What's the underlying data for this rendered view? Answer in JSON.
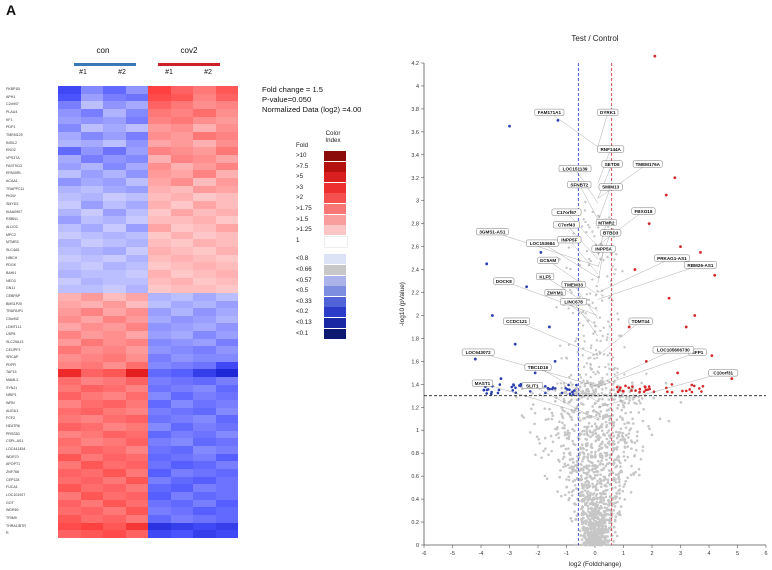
{
  "panel_label": "A",
  "heatmap": {
    "groups": [
      {
        "name": "con",
        "color": "#3a78b5",
        "replicates": [
          "#1",
          "#2"
        ]
      },
      {
        "name": "cov2",
        "color": "#cc2127",
        "replicates": [
          "#1",
          "#2"
        ]
      }
    ],
    "genes": [
      "FKBP1B",
      "APH1",
      "C2orf47",
      "PLAU4",
      "KF1",
      "PDP1",
      "TMEM129",
      "INSIL2",
      "ENO2",
      "VPS37A",
      "FASTKD3",
      "EPA00RL",
      "ACAA1",
      "TRAPPC11",
      "PIGW",
      "SMYD3",
      "KIAA0907",
      "RSBN1",
      "ALDOC",
      "MPC2",
      "MTMR3",
      "SLC4A5",
      "HIBCH",
      "PDGK",
      "BAHI1",
      "NEO3",
      "GN11",
      "CEBPAP",
      "BMS1P20",
      "TRAFAIP1",
      "C5orf42",
      "LDMT1L1",
      "USP8",
      "SLC25A13",
      "CEIJPF3",
      "SRCAP",
      "PDPR",
      "TAF15",
      "MAML3",
      "SYNJ1",
      "NRIP1",
      "WRN",
      "AUGU1",
      "FCF2",
      "HEATR6",
      "PRSS53",
      "CSPL-AS1",
      "LOC441454",
      "WDR70",
      "APOPT1",
      "ZNF766",
      "CEP128",
      "FUCA1",
      "LOC101927",
      "GOT",
      "WDR60",
      "TRIM9",
      "THRA1/BTR",
      "R"
    ],
    "cells": [
      [
        -0.85,
        -0.55,
        -0.7,
        -0.5,
        0.85,
        0.7,
        0.6,
        0.75
      ],
      [
        -0.8,
        -0.45,
        -0.6,
        -0.65,
        0.8,
        0.75,
        0.55,
        0.7
      ],
      [
        -0.6,
        -0.3,
        -0.5,
        -0.4,
        0.7,
        0.6,
        0.5,
        0.55
      ],
      [
        -0.5,
        -0.6,
        -0.35,
        -0.55,
        0.6,
        0.55,
        0.65,
        0.5
      ],
      [
        -0.45,
        -0.5,
        -0.45,
        -0.6,
        0.55,
        0.6,
        0.5,
        0.45
      ],
      [
        -0.55,
        -0.3,
        -0.4,
        -0.3,
        0.45,
        0.5,
        0.35,
        0.5
      ],
      [
        -0.4,
        -0.55,
        -0.45,
        -0.6,
        0.5,
        0.45,
        0.6,
        0.55
      ],
      [
        -0.35,
        -0.4,
        -0.3,
        -0.5,
        0.4,
        0.45,
        0.35,
        0.5
      ],
      [
        -0.7,
        -0.5,
        -0.65,
        -0.45,
        0.55,
        0.5,
        0.45,
        0.6
      ],
      [
        -0.4,
        -0.6,
        -0.5,
        -0.55,
        0.35,
        0.55,
        0.5,
        0.4
      ],
      [
        -0.45,
        -0.35,
        -0.55,
        -0.4,
        0.5,
        0.35,
        0.45,
        0.55
      ],
      [
        -0.3,
        -0.45,
        -0.35,
        -0.5,
        0.45,
        0.4,
        0.55,
        0.35
      ],
      [
        -0.5,
        -0.4,
        -0.45,
        -0.3,
        0.4,
        0.5,
        0.3,
        0.45
      ],
      [
        -0.35,
        -0.3,
        -0.4,
        -0.45,
        0.35,
        0.3,
        0.45,
        0.4
      ],
      [
        -0.3,
        -0.35,
        -0.25,
        -0.3,
        0.3,
        0.35,
        0.25,
        0.3
      ],
      [
        -0.25,
        -0.45,
        -0.3,
        -0.4,
        0.35,
        0.25,
        0.4,
        0.3
      ],
      [
        -0.35,
        -0.25,
        -0.45,
        -0.3,
        0.25,
        0.4,
        0.3,
        0.35
      ],
      [
        -0.45,
        -0.3,
        -0.35,
        -0.25,
        0.3,
        0.3,
        0.35,
        0.25
      ],
      [
        -0.3,
        -0.4,
        -0.25,
        -0.45,
        0.4,
        0.25,
        0.3,
        0.4
      ],
      [
        -0.25,
        -0.3,
        -0.35,
        -0.3,
        0.25,
        0.35,
        0.25,
        0.3
      ],
      [
        -0.35,
        -0.25,
        -0.3,
        -0.35,
        0.3,
        0.25,
        0.35,
        0.3
      ],
      [
        -0.3,
        -0.35,
        -0.4,
        -0.25,
        0.35,
        0.3,
        0.25,
        0.35
      ],
      [
        -0.25,
        -0.3,
        -0.25,
        -0.35,
        0.3,
        0.35,
        0.3,
        0.25
      ],
      [
        -0.3,
        -0.25,
        -0.35,
        -0.3,
        0.25,
        0.3,
        0.35,
        0.3
      ],
      [
        -0.35,
        -0.3,
        -0.3,
        -0.25,
        0.35,
        0.25,
        0.3,
        0.35
      ],
      [
        -0.25,
        -0.35,
        -0.3,
        -0.3,
        0.3,
        0.35,
        0.25,
        0.3
      ],
      [
        -0.3,
        -0.3,
        -0.25,
        -0.35,
        0.25,
        0.3,
        0.3,
        0.25
      ],
      [
        0.35,
        0.45,
        0.3,
        0.4,
        -0.35,
        -0.3,
        -0.4,
        -0.3
      ],
      [
        0.4,
        0.35,
        0.45,
        0.3,
        -0.3,
        -0.4,
        -0.35,
        -0.45
      ],
      [
        0.45,
        0.55,
        0.4,
        0.5,
        -0.45,
        -0.35,
        -0.5,
        -0.4
      ],
      [
        0.5,
        0.4,
        0.55,
        0.45,
        -0.4,
        -0.5,
        -0.45,
        -0.35
      ],
      [
        0.4,
        0.5,
        0.45,
        0.55,
        -0.5,
        -0.45,
        -0.4,
        -0.5
      ],
      [
        0.55,
        0.45,
        0.5,
        0.4,
        -0.45,
        -0.4,
        -0.55,
        -0.45
      ],
      [
        0.45,
        0.6,
        0.5,
        0.55,
        -0.55,
        -0.5,
        -0.45,
        -0.6
      ],
      [
        0.6,
        0.5,
        0.55,
        0.45,
        -0.5,
        -0.55,
        -0.6,
        -0.5
      ],
      [
        0.5,
        0.55,
        0.6,
        0.5,
        -0.6,
        -0.5,
        -0.55,
        -0.55
      ],
      [
        0.55,
        0.6,
        0.5,
        0.65,
        -0.55,
        -0.6,
        -0.65,
        -0.85
      ],
      [
        0.95,
        0.7,
        0.75,
        1.0,
        -0.7,
        -0.75,
        -0.9,
        -1.0
      ],
      [
        0.65,
        0.55,
        0.6,
        0.7,
        -0.6,
        -0.65,
        -0.7,
        -0.6
      ],
      [
        0.6,
        0.7,
        0.65,
        0.55,
        -0.65,
        -0.6,
        -0.55,
        -0.7
      ],
      [
        0.7,
        0.6,
        0.55,
        0.65,
        -0.55,
        -0.7,
        -0.6,
        -0.65
      ],
      [
        0.55,
        0.65,
        0.7,
        0.6,
        -0.7,
        -0.55,
        -0.65,
        -0.6
      ],
      [
        0.65,
        0.7,
        0.6,
        0.55,
        -0.6,
        -0.65,
        -0.7,
        -0.55
      ],
      [
        0.6,
        0.55,
        0.65,
        0.7,
        -0.65,
        -0.6,
        -0.55,
        -0.7
      ],
      [
        0.7,
        0.65,
        0.55,
        0.6,
        -0.55,
        -0.7,
        -0.6,
        -0.65
      ],
      [
        0.55,
        0.6,
        0.7,
        0.65,
        -0.7,
        -0.6,
        -0.65,
        -0.55
      ],
      [
        0.65,
        0.55,
        0.6,
        0.7,
        -0.6,
        -0.55,
        -0.7,
        -0.65
      ],
      [
        0.6,
        0.7,
        0.65,
        0.55,
        -0.65,
        -0.7,
        -0.55,
        -0.6
      ],
      [
        0.75,
        0.6,
        0.7,
        0.65,
        -0.7,
        -0.65,
        -0.6,
        -0.75
      ],
      [
        0.6,
        0.75,
        0.65,
        0.7,
        -0.65,
        -0.75,
        -0.7,
        -0.6
      ],
      [
        0.7,
        0.65,
        0.75,
        0.6,
        -0.75,
        -0.6,
        -0.65,
        -0.7
      ],
      [
        0.65,
        0.7,
        0.6,
        0.75,
        -0.6,
        -0.7,
        -0.75,
        -0.65
      ],
      [
        0.75,
        0.65,
        0.7,
        0.6,
        -0.7,
        -0.75,
        -0.6,
        -0.65
      ],
      [
        0.6,
        0.75,
        0.65,
        0.7,
        -0.75,
        -0.6,
        -0.7,
        -0.65
      ],
      [
        0.7,
        0.6,
        0.75,
        0.65,
        -0.65,
        -0.7,
        -0.6,
        -0.75
      ],
      [
        0.65,
        0.7,
        0.6,
        0.75,
        -0.6,
        -0.65,
        -0.75,
        -0.7
      ],
      [
        0.75,
        0.65,
        0.7,
        0.6,
        -0.7,
        -0.6,
        -0.65,
        -0.7
      ],
      [
        0.8,
        0.85,
        0.75,
        0.9,
        -0.95,
        -0.9,
        -0.85,
        -0.9
      ],
      [
        0.7,
        0.75,
        0.8,
        0.7,
        -0.85,
        -0.8,
        -0.9,
        -0.85
      ]
    ]
  },
  "parameters": {
    "fold_change": "Fold change = 1.5",
    "p_value": "P-value=0.050",
    "normalized": "Normalized Data (log2) =4.00"
  },
  "color_legend": {
    "header_fold": "Fold",
    "header_color": "Color Index",
    "entries": [
      {
        "label": ">10",
        "color": "#8b0a0a"
      },
      {
        "label": ">7.5",
        "color": "#b5120f"
      },
      {
        "label": ">5",
        "color": "#d81e1e"
      },
      {
        "label": ">3",
        "color": "#ee2f2f"
      },
      {
        "label": ">2",
        "color": "#f55050"
      },
      {
        "label": ">1.75",
        "color": "#f87676"
      },
      {
        "label": ">1.5",
        "color": "#fa9d9d"
      },
      {
        "label": ">1.25",
        "color": "#fcc6c6"
      },
      {
        "label": "1",
        "color": "#ffffff"
      },
      {
        "label": "<0.8",
        "color": "#dde3f6"
      },
      {
        "label": "<0.66",
        "color": "#c8c8c8"
      },
      {
        "label": "<0.57",
        "color": "#aab4ea"
      },
      {
        "label": "<0.5",
        "color": "#7d8ee0"
      },
      {
        "label": "<0.33",
        "color": "#5163d8"
      },
      {
        "label": "<0.2",
        "color": "#2b3ccb"
      },
      {
        "label": "<0.13",
        "color": "#1a28a3"
      },
      {
        "label": "<0.1",
        "color": "#0d1870"
      }
    ]
  },
  "chart_data": {
    "type": "scatter",
    "title": "Test / Control",
    "xlabel": "log2 (Foldchange)",
    "ylabel": "-log10 (pValue)",
    "xlim": [
      -6,
      6
    ],
    "ylim": [
      0,
      4.2
    ],
    "xticks": [
      "-6",
      "-5",
      "-4",
      "-3",
      "-2",
      "-1",
      "0",
      "1",
      "2",
      "3",
      "4",
      "5",
      "6"
    ],
    "yticks": [
      "0",
      "0.2",
      "0.4",
      "0.6",
      "0.8",
      "1",
      "1.2",
      "1.4",
      "1.6",
      "1.8",
      "2",
      "2.2",
      "2.4",
      "2.6",
      "2.8",
      "3",
      "3.2",
      "3.4",
      "3.6",
      "3.8",
      "4",
      "4.2"
    ],
    "thresholds": {
      "fold_lines": [
        -0.585,
        0.585
      ],
      "pvalue_line": 1.301
    },
    "colors": {
      "up": "#d62728",
      "down": "#2a3fb0",
      "ns": "#c6c6c6"
    },
    "points_up": [
      [
        2.1,
        4.26
      ],
      [
        2.8,
        3.2
      ],
      [
        3.7,
        2.55
      ],
      [
        4.2,
        2.35
      ],
      [
        4.8,
        1.45
      ],
      [
        3.2,
        1.9
      ],
      [
        2.6,
        2.15
      ],
      [
        1.9,
        2.8
      ],
      [
        3.5,
        2.0
      ],
      [
        2.3,
        1.7
      ],
      [
        4.1,
        1.65
      ],
      [
        1.4,
        2.4
      ],
      [
        2.9,
        1.5
      ],
      [
        1.2,
        1.9
      ],
      [
        1.8,
        1.6
      ],
      [
        3.0,
        2.6
      ],
      [
        2.5,
        3.05
      ]
    ],
    "points_down": [
      [
        -3.0,
        3.65
      ],
      [
        -1.3,
        3.7
      ],
      [
        -3.8,
        2.45
      ],
      [
        -3.6,
        2.0
      ],
      [
        -4.2,
        1.62
      ],
      [
        -3.9,
        1.35
      ],
      [
        -2.8,
        1.75
      ],
      [
        -2.4,
        2.25
      ],
      [
        -1.9,
        2.55
      ],
      [
        -2.1,
        1.5
      ],
      [
        -1.6,
        1.9
      ],
      [
        -3.3,
        1.45
      ],
      [
        -2.6,
        1.4
      ],
      [
        -1.4,
        1.6
      ],
      [
        -1.1,
        2.1
      ]
    ],
    "labels": [
      {
        "text": "FAM171A1",
        "x": -1.6,
        "y": 3.77
      },
      {
        "text": "DYRK1",
        "x": 0.45,
        "y": 3.77
      },
      {
        "text": "RNF144A",
        "x": 0.55,
        "y": 3.45
      },
      {
        "text": "SETD6",
        "x": 0.6,
        "y": 3.32
      },
      {
        "text": "TMEM176A",
        "x": 1.85,
        "y": 3.32
      },
      {
        "text": "LOC151139",
        "x": -0.7,
        "y": 3.28
      },
      {
        "text": "SFNBT2",
        "x": -0.55,
        "y": 3.14
      },
      {
        "text": "SMIM13",
        "x": 0.55,
        "y": 3.12
      },
      {
        "text": "C17orf67",
        "x": -1.0,
        "y": 2.9
      },
      {
        "text": "FBXO18",
        "x": 1.7,
        "y": 2.91
      },
      {
        "text": "C7orf43",
        "x": -1.0,
        "y": 2.79
      },
      {
        "text": "3GMS1-AS1",
        "x": -3.6,
        "y": 2.73
      },
      {
        "text": "LOC153684",
        "x": -1.85,
        "y": 2.63
      },
      {
        "text": "INPP5F",
        "x": -0.9,
        "y": 2.66
      },
      {
        "text": "MTMR2",
        "x": 0.4,
        "y": 2.81
      },
      {
        "text": "BTBD3",
        "x": 0.55,
        "y": 2.72
      },
      {
        "text": "INPP5A",
        "x": 0.3,
        "y": 2.58
      },
      {
        "text": "PRKAG1-AS1",
        "x": 2.7,
        "y": 2.5
      },
      {
        "text": "RBM26-AS1",
        "x": 3.7,
        "y": 2.44
      },
      {
        "text": "GC5AM",
        "x": -1.65,
        "y": 2.48
      },
      {
        "text": "KLF5",
        "x": -1.75,
        "y": 2.34
      },
      {
        "text": "DOCK8",
        "x": -3.2,
        "y": 2.3
      },
      {
        "text": "ZMYM1",
        "x": -1.4,
        "y": 2.2
      },
      {
        "text": "TMEM33",
        "x": -0.75,
        "y": 2.27
      },
      {
        "text": "LINC678",
        "x": -0.75,
        "y": 2.12
      },
      {
        "text": "CCDC121",
        "x": -2.75,
        "y": 1.95
      },
      {
        "text": "LOC643072",
        "x": -4.1,
        "y": 1.68
      },
      {
        "text": "TDMT44",
        "x": 1.6,
        "y": 1.95
      },
      {
        "text": "MAST1",
        "x": -3.95,
        "y": 1.41
      },
      {
        "text": "SLIT1",
        "x": -2.2,
        "y": 1.39
      },
      {
        "text": "TBC1D16",
        "x": -2.0,
        "y": 1.55
      },
      {
        "text": "SFP1",
        "x": 3.6,
        "y": 1.68
      },
      {
        "text": "C10orf31",
        "x": 4.5,
        "y": 1.5
      },
      {
        "text": "LOC105606730",
        "x": 2.75,
        "y": 1.7
      }
    ]
  }
}
